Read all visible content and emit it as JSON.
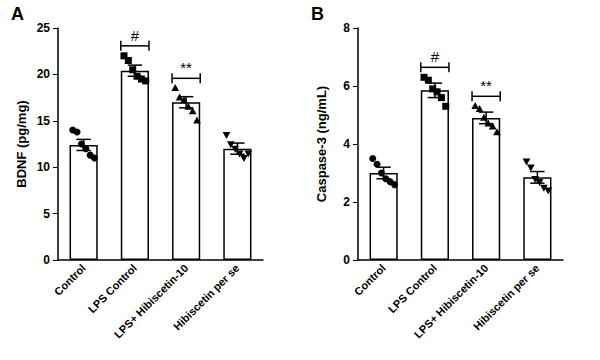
{
  "chart_data": [
    {
      "type": "bar",
      "title": "A",
      "ylabel": "BDNF (pg/mg)",
      "categories": [
        "Control",
        "LPS Control",
        "LPS+ Hibiscetin-10",
        "Hibiscetin per se"
      ],
      "values": [
        12.4,
        20.4,
        17.0,
        12.0
      ],
      "errors": [
        0.6,
        0.6,
        0.6,
        0.6
      ],
      "points": [
        [
          14.0,
          13.8,
          12.5,
          12.0,
          11.3,
          11.0
        ],
        [
          22.0,
          21.5,
          20.5,
          19.8,
          19.5,
          19.3
        ],
        [
          18.5,
          17.5,
          17.2,
          16.5,
          16.0,
          15.0
        ],
        [
          13.5,
          12.5,
          12.0,
          11.5,
          11.0,
          11.5
        ]
      ],
      "marker": [
        "circle",
        "square",
        "triangle",
        "triangle-down"
      ],
      "annotations": [
        {
          "text": "#",
          "category": "LPS Control"
        },
        {
          "text": "**",
          "category": "LPS+ Hibiscetin-10"
        }
      ],
      "color": "#ffffff",
      "ylim": [
        0,
        25
      ],
      "yticks": [
        0,
        5,
        10,
        15,
        20,
        25
      ],
      "grid": false
    },
    {
      "type": "bar",
      "title": "B",
      "ylabel": "Caspase-3 (ng/mL)",
      "categories": [
        "Control",
        "LPS Control",
        "LPS+ Hibiscetin-10",
        "Hibiscetin per se"
      ],
      "values": [
        3.0,
        5.85,
        4.9,
        2.85
      ],
      "errors": [
        0.2,
        0.25,
        0.2,
        0.2
      ],
      "points": [
        [
          3.5,
          3.3,
          3.0,
          2.8,
          2.7,
          2.6
        ],
        [
          6.3,
          6.2,
          5.9,
          5.8,
          5.6,
          5.3
        ],
        [
          5.3,
          5.2,
          4.9,
          4.7,
          4.6,
          4.4
        ],
        [
          3.4,
          3.2,
          2.8,
          2.7,
          2.5,
          2.4
        ]
      ],
      "marker": [
        "circle",
        "square",
        "triangle",
        "triangle-down"
      ],
      "annotations": [
        {
          "text": "#",
          "category": "LPS Control"
        },
        {
          "text": "**",
          "category": "LPS+ Hibiscetin-10"
        }
      ],
      "color": "#ffffff",
      "ylim": [
        0,
        8
      ],
      "yticks": [
        0,
        2,
        4,
        6,
        8
      ],
      "grid": false
    }
  ]
}
